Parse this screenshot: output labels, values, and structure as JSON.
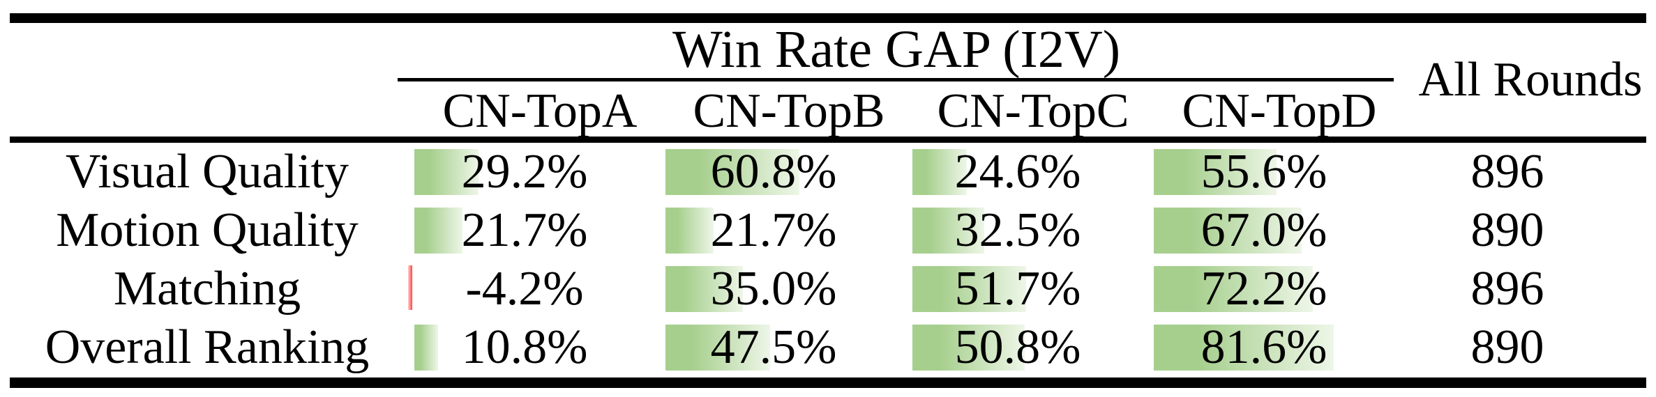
{
  "table": {
    "group_title": "Win Rate GAP (I2V)",
    "all_rounds_label": "All Rounds",
    "columns": [
      "CN-TopA",
      "CN-TopB",
      "CN-TopC",
      "CN-TopD"
    ],
    "rows": [
      {
        "label": "Visual Quality",
        "cells": [
          {
            "text": "29.2%",
            "value": 29.2
          },
          {
            "text": "60.8%",
            "value": 60.8
          },
          {
            "text": "24.6%",
            "value": 24.6
          },
          {
            "text": "55.6%",
            "value": 55.6
          }
        ],
        "all_rounds": "896"
      },
      {
        "label": "Motion Quality",
        "cells": [
          {
            "text": "21.7%",
            "value": 21.7
          },
          {
            "text": "21.7%",
            "value": 21.7
          },
          {
            "text": "32.5%",
            "value": 32.5
          },
          {
            "text": "67.0%",
            "value": 67.0
          }
        ],
        "all_rounds": "890"
      },
      {
        "label": "Matching",
        "cells": [
          {
            "text": "-4.2%",
            "value": -4.2
          },
          {
            "text": "35.0%",
            "value": 35.0
          },
          {
            "text": "51.7%",
            "value": 51.7
          },
          {
            "text": "72.2%",
            "value": 72.2
          }
        ],
        "all_rounds": "896"
      },
      {
        "label": "Overall Ranking",
        "cells": [
          {
            "text": "10.8%",
            "value": 10.8
          },
          {
            "text": "47.5%",
            "value": 47.5
          },
          {
            "text": "50.8%",
            "value": 50.8
          },
          {
            "text": "81.6%",
            "value": 81.6
          }
        ],
        "all_rounds": "890"
      }
    ],
    "colors": {
      "bar_positive": "#a6cf8d",
      "bar_positive_fade": "#eef6e8",
      "bar_negative": "#ff4444",
      "rule": "#000000",
      "text": "#000000"
    }
  },
  "chart_data": {
    "type": "table",
    "title": "Win Rate GAP (I2V)",
    "columns": [
      "CN-TopA",
      "CN-TopB",
      "CN-TopC",
      "CN-TopD",
      "All Rounds"
    ],
    "row_labels": [
      "Visual Quality",
      "Motion Quality",
      "Matching",
      "Overall Ranking"
    ],
    "win_rate_gap_percent": [
      [
        29.2,
        60.8,
        24.6,
        55.6
      ],
      [
        21.7,
        21.7,
        32.5,
        67.0
      ],
      [
        -4.2,
        35.0,
        51.7,
        72.2
      ],
      [
        10.8,
        47.5,
        50.8,
        81.6
      ]
    ],
    "all_rounds": [
      896,
      890,
      896,
      890
    ],
    "bar_scale_max_percent": 100
  }
}
